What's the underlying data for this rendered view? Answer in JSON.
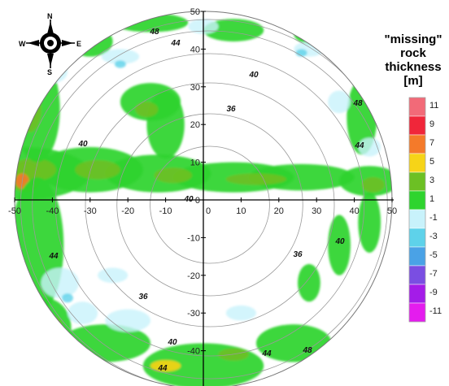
{
  "legend": {
    "title_lines": [
      "\"missing\"",
      "rock",
      "thickness",
      "[m]"
    ],
    "levels": [
      {
        "label": "11",
        "color": "#f26a78"
      },
      {
        "label": "9",
        "color": "#f0263a"
      },
      {
        "label": "7",
        "color": "#f47a2a"
      },
      {
        "label": "5",
        "color": "#f6d418"
      },
      {
        "label": "3",
        "color": "#6cc024"
      },
      {
        "label": "1",
        "color": "#2ed42e"
      },
      {
        "label": "-1",
        "color": "#c8f2fb"
      },
      {
        "label": "-3",
        "color": "#5ed2ea"
      },
      {
        "label": "-5",
        "color": "#4aa2e6"
      },
      {
        "label": "-7",
        "color": "#7a4ee2"
      },
      {
        "label": "-9",
        "color": "#a41ce8"
      },
      {
        "label": "-11",
        "color": "#e41cee"
      }
    ]
  },
  "axes": {
    "x_ticks": [
      "-50",
      "-40",
      "-30",
      "-20",
      "-10",
      "0",
      "10",
      "20",
      "30",
      "40",
      "50"
    ],
    "y_ticks": [
      "50",
      "40",
      "30",
      "20",
      "10",
      "0",
      "-10",
      "-20",
      "-30",
      "-40"
    ]
  },
  "compass": {
    "n": "N",
    "s": "S",
    "e": "E",
    "w": "W"
  },
  "contour_labels": [
    "48",
    "44",
    "40",
    "36",
    "40",
    "40",
    "48",
    "44",
    "36",
    "40",
    "44",
    "36",
    "40",
    "44",
    "44",
    "48"
  ]
}
